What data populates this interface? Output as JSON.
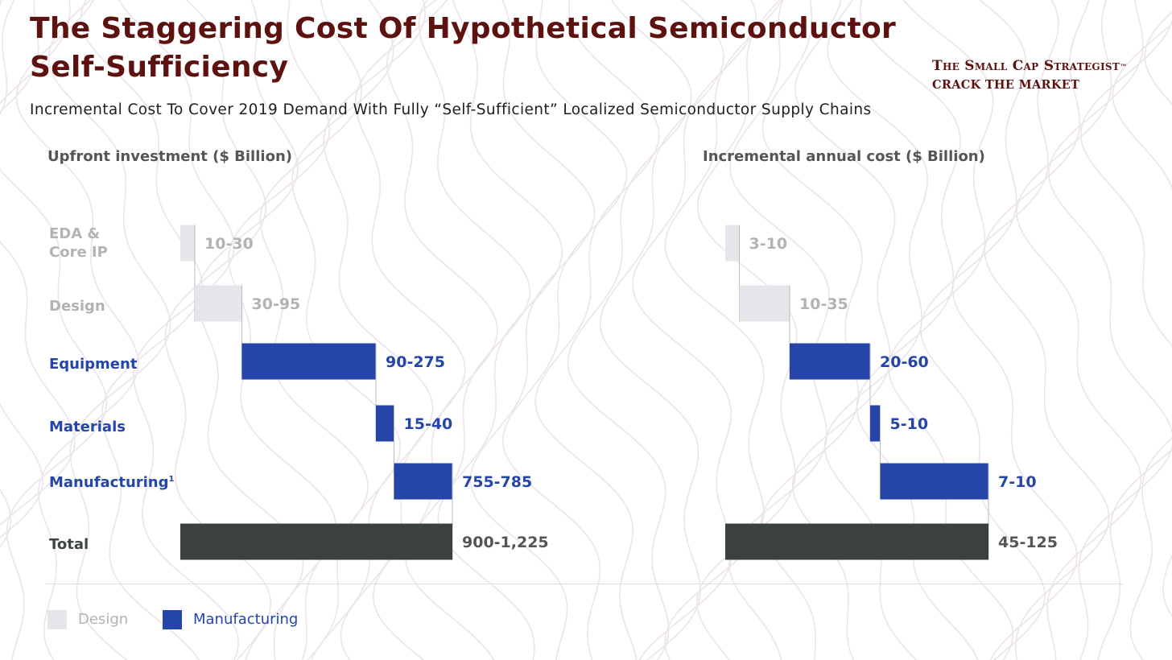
{
  "page": {
    "title": "The Staggering Cost Of Hypothetical Semiconductor Self-Sufficiency",
    "subtitle": "Incremental Cost To Cover 2019 Demand With Fully “Self-Sufficient” Localized Semiconductor Supply Chains",
    "brand": {
      "name": "The Small Cap Strategist",
      "tm": "™",
      "tagline": "Crack the market"
    }
  },
  "row_labels": {
    "eda": "EDA & Core IP",
    "design": "Design",
    "equipment": "Equipment",
    "materials": "Materials",
    "manufacturing": "Manufacturing",
    "manufacturing_footnote": "1",
    "total": "Total"
  },
  "legend": {
    "design": "Design",
    "manufacturing": "Manufacturing"
  },
  "colors": {
    "title": "#5e1210",
    "design": "#e6e6ea",
    "design_text": "#b3b3b3",
    "manufacturing": "#2546a8",
    "total": "#3b4040",
    "total_text": "#555555",
    "connector": "#bbbbbb",
    "background_lines": "#ece3ec"
  },
  "chart_data": [
    {
      "type": "waterfall",
      "title": "Upfront investment ($ Billion)",
      "categories": [
        "EDA & Core IP",
        "Design",
        "Equipment",
        "Materials",
        "Manufacturing",
        "Total"
      ],
      "groups": [
        "design",
        "design",
        "manufacturing",
        "manufacturing",
        "manufacturing",
        "total"
      ],
      "ranges": [
        [
          10,
          30
        ],
        [
          30,
          95
        ],
        [
          90,
          275
        ],
        [
          15,
          40
        ],
        [
          755,
          785
        ],
        [
          900,
          1225
        ]
      ],
      "labels": [
        "10-30",
        "30-95",
        "90-275",
        "15-40",
        "755-785",
        "900-1,225"
      ]
    },
    {
      "type": "waterfall",
      "title": "Incremental annual cost ($ Billion)",
      "categories": [
        "EDA & Core IP",
        "Design",
        "Equipment",
        "Materials",
        "Manufacturing",
        "Total"
      ],
      "groups": [
        "design",
        "design",
        "manufacturing",
        "manufacturing",
        "manufacturing",
        "total"
      ],
      "ranges": [
        [
          3,
          10
        ],
        [
          10,
          35
        ],
        [
          20,
          60
        ],
        [
          5,
          10
        ],
        [
          7,
          10
        ],
        [
          45,
          125
        ]
      ],
      "labels": [
        "3-10",
        "10-35",
        "20-60",
        "5-10",
        "7-10",
        "45-125"
      ]
    }
  ]
}
